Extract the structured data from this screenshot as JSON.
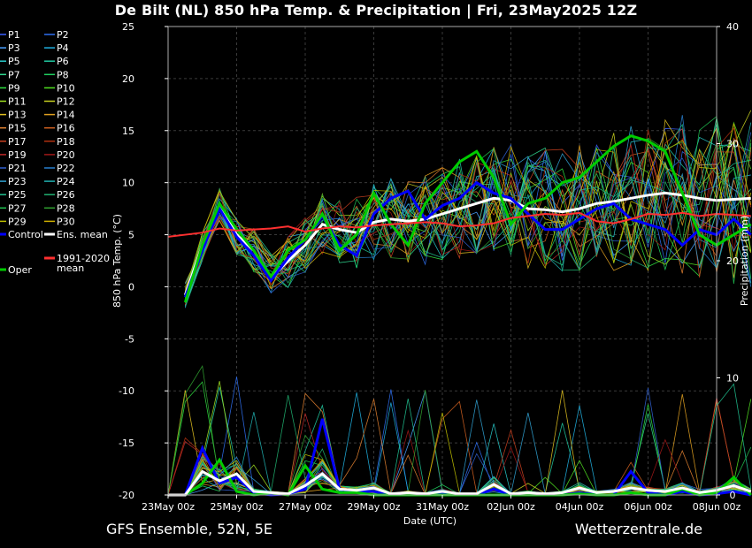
{
  "title": "De Bilt  (NL)  850 hPa Temp. & Precipitation | Fri, 23May2025 12Z",
  "footer": {
    "left": "GFS Ensemble, 52N, 5E",
    "right": "Wetterzentrale.de"
  },
  "colors": {
    "background": "#000000",
    "grid": "#3a3a3a",
    "control": "#0000ff",
    "ens_mean": "#ffffff",
    "oper": "#00cc00",
    "climate_mean": "#ff3030"
  },
  "chart_data": {
    "type": "line",
    "xlabel": "Date (UTC)",
    "ylabel_left": "850 hPa Temp. (°C)",
    "ylabel_right": "Precipitation (mm)",
    "x_ticks": [
      "23May 00z",
      "25May 00z",
      "27May 00z",
      "29May 00z",
      "31May 00z",
      "02Jun 00z",
      "04Jun 00z",
      "06Jun 00z",
      "08Jun 00z"
    ],
    "y_left_ticks": [
      -20,
      -15,
      -10,
      -5,
      0,
      5,
      10,
      15,
      20,
      25
    ],
    "y_right_ticks": [
      0,
      10,
      20,
      30,
      40
    ],
    "ylim_left": [
      -20,
      25
    ],
    "ylim_right": [
      0,
      40
    ],
    "grid": true,
    "legend": {
      "placement": "left",
      "members": [
        "P1",
        "P2",
        "P3",
        "P4",
        "P5",
        "P6",
        "P7",
        "P8",
        "P9",
        "P10",
        "P11",
        "P12",
        "P13",
        "P14",
        "P15",
        "P16",
        "P17",
        "P18",
        "P19",
        "P20",
        "P21",
        "P22",
        "P23",
        "P24",
        "P25",
        "P26",
        "P27",
        "P28",
        "P29",
        "P30"
      ],
      "member_colors": [
        "#3a5fff",
        "#2f6ff0",
        "#4aa0ff",
        "#20b0e0",
        "#28c8c8",
        "#20c8a0",
        "#30d890",
        "#20d060",
        "#30e040",
        "#50e020",
        "#a0e020",
        "#c8d020",
        "#e0c020",
        "#e0a020",
        "#e08030",
        "#d06020",
        "#c84020",
        "#b03010",
        "#c02828",
        "#a01818",
        "#3060d0",
        "#2880d0",
        "#30a0d0",
        "#20b0b0",
        "#20c090",
        "#20b070",
        "#20c050",
        "#30a030",
        "#c0c000",
        "#d0b000"
      ],
      "control": "Control",
      "ens_mean": "Ens. mean",
      "climate": "1991-2020\nmean",
      "oper": "Oper"
    },
    "series": [
      {
        "name": "Ens. mean",
        "x_days": [
          0.5,
          1,
          1.5,
          2,
          2.5,
          3,
          3.5,
          4,
          4.5,
          5,
          5.5,
          6,
          6.5,
          7,
          7.5,
          8,
          8.5,
          9,
          9.5,
          10,
          10.5,
          11,
          11.5,
          12,
          12.5,
          13,
          13.5,
          14,
          14.5,
          15,
          15.5,
          16,
          16.5,
          17
        ],
        "values": [
          -0.8,
          4,
          7.8,
          5,
          3.5,
          0.8,
          2.5,
          4,
          6,
          5.5,
          5.2,
          6.2,
          6.5,
          6.3,
          6.5,
          7,
          7.5,
          8,
          8.5,
          8.3,
          7.5,
          7.4,
          7.2,
          7.5,
          8,
          8.2,
          8.5,
          8.8,
          9,
          8.8,
          8.5,
          8.3,
          8.4,
          8.5
        ]
      },
      {
        "name": "Control",
        "x_days": [
          0.5,
          1,
          1.5,
          2,
          2.5,
          3,
          3.5,
          4,
          4.5,
          5,
          5.5,
          6,
          6.5,
          7,
          7.5,
          8,
          8.5,
          9,
          9.5,
          10,
          10.5,
          11,
          11.5,
          12,
          12.5,
          13,
          13.5,
          14,
          14.5,
          15,
          15.5,
          16,
          16.5,
          17
        ],
        "values": [
          -1,
          3.5,
          7.5,
          4.8,
          3,
          0.6,
          2.8,
          4.5,
          6.8,
          4,
          3,
          7,
          8.5,
          9.2,
          6.5,
          7.8,
          8.5,
          10,
          9,
          8.5,
          7,
          5.5,
          5.5,
          6.5,
          7.5,
          8,
          6.5,
          6,
          5.5,
          4,
          5.5,
          5,
          6.5,
          5
        ]
      },
      {
        "name": "Oper",
        "x_days": [
          0.5,
          1,
          1.5,
          2,
          2.5,
          3,
          3.5,
          4,
          4.5,
          5,
          5.5,
          6,
          6.5,
          7,
          7.5,
          8,
          8.5,
          9,
          9.5,
          10,
          10.5,
          11,
          11.5,
          12,
          12.5,
          13,
          13.5,
          14,
          14.5,
          15,
          15.5,
          16,
          16.5,
          17
        ],
        "values": [
          -1.5,
          4,
          8,
          5.5,
          3.5,
          1,
          3.5,
          4.5,
          7,
          3.5,
          5,
          9,
          6,
          4,
          8,
          10,
          12,
          13,
          10.5,
          6,
          8,
          8.5,
          10,
          10.5,
          12,
          13.5,
          14.5,
          14,
          13,
          9,
          5,
          4,
          5,
          6
        ]
      },
      {
        "name": "1991-2020 mean",
        "x_days": [
          0,
          0.5,
          1,
          1.5,
          2,
          2.5,
          3,
          3.5,
          4,
          4.5,
          5,
          5.5,
          6,
          6.5,
          7,
          7.5,
          8,
          8.5,
          9,
          9.5,
          10,
          10.5,
          11,
          11.5,
          12,
          12.5,
          13,
          13.5,
          14,
          14.5,
          15,
          15.5,
          16,
          16.5,
          17
        ],
        "values": [
          4.8,
          5,
          5.2,
          5.6,
          5.4,
          5.5,
          5.6,
          5.8,
          5.3,
          5.6,
          5.8,
          5.7,
          5.9,
          6,
          6.1,
          6.2,
          6.1,
          5.8,
          5.9,
          6.1,
          6.6,
          6.8,
          7,
          6.9,
          7.1,
          6.3,
          6.1,
          6.5,
          7,
          6.9,
          7.1,
          6.8,
          7,
          6.9,
          6.8
        ]
      }
    ],
    "precipitation": {
      "unit": "mm",
      "ens_mean_x_days": [
        0,
        0.5,
        1,
        1.5,
        2,
        2.5,
        3,
        3.5,
        4,
        4.5,
        5,
        5.5,
        6,
        6.5,
        7,
        7.5,
        8,
        8.5,
        9,
        9.5,
        10,
        10.5,
        11,
        11.5,
        12,
        12.5,
        13,
        13.5,
        14,
        14.5,
        15,
        15.5,
        16,
        16.5,
        17
      ],
      "ens_mean_values": [
        0,
        0,
        2,
        1.2,
        1.8,
        0.3,
        0.2,
        0.1,
        0.8,
        1.8,
        0.5,
        0.4,
        0.6,
        0.1,
        0.2,
        0.1,
        0.3,
        0.1,
        0.1,
        0.9,
        0.1,
        0.2,
        0.1,
        0.2,
        0.6,
        0.2,
        0.3,
        0.6,
        0.4,
        0.3,
        0.6,
        0.2,
        0.4,
        0.8,
        0.3
      ],
      "control_x_days": [
        0,
        0.5,
        1,
        1.5,
        2,
        2.5,
        3,
        3.5,
        4,
        4.5,
        5,
        5.5,
        6,
        6.5,
        7,
        7.5,
        8,
        8.5,
        9,
        9.5,
        10,
        10.5,
        11,
        11.5,
        12,
        12.5,
        13,
        13.5,
        14,
        14.5,
        15,
        15.5,
        16,
        16.5,
        17
      ],
      "control_values": [
        0,
        0,
        4,
        1,
        1.5,
        0.2,
        0,
        0.1,
        0.5,
        6.5,
        0.5,
        0.3,
        0.3,
        0,
        0,
        0,
        0.1,
        0,
        0,
        0.5,
        0,
        0.1,
        0,
        0,
        0.2,
        0,
        0,
        2,
        0.2,
        0,
        0.3,
        0,
        0.1,
        0.3,
        0
      ],
      "oper_x_days": [
        0,
        0.5,
        1,
        1.5,
        2,
        2.5,
        3,
        3.5,
        4,
        4.5,
        5,
        5.5,
        6,
        6.5,
        7,
        7.5,
        8,
        8.5,
        9,
        9.5,
        10,
        10.5,
        11,
        11.5,
        12,
        12.5,
        13,
        13.5,
        14,
        14.5,
        15,
        15.5,
        16,
        16.5,
        17
      ],
      "oper_values": [
        0,
        0,
        1,
        3,
        0.3,
        0,
        0.2,
        0,
        2.5,
        0.5,
        0.2,
        0.2,
        0,
        0,
        0,
        0,
        0,
        0,
        0,
        0,
        0,
        0,
        0,
        0,
        0.1,
        0,
        0,
        0.2,
        0,
        0,
        0.5,
        0,
        0.2,
        1.5,
        0
      ]
    }
  }
}
